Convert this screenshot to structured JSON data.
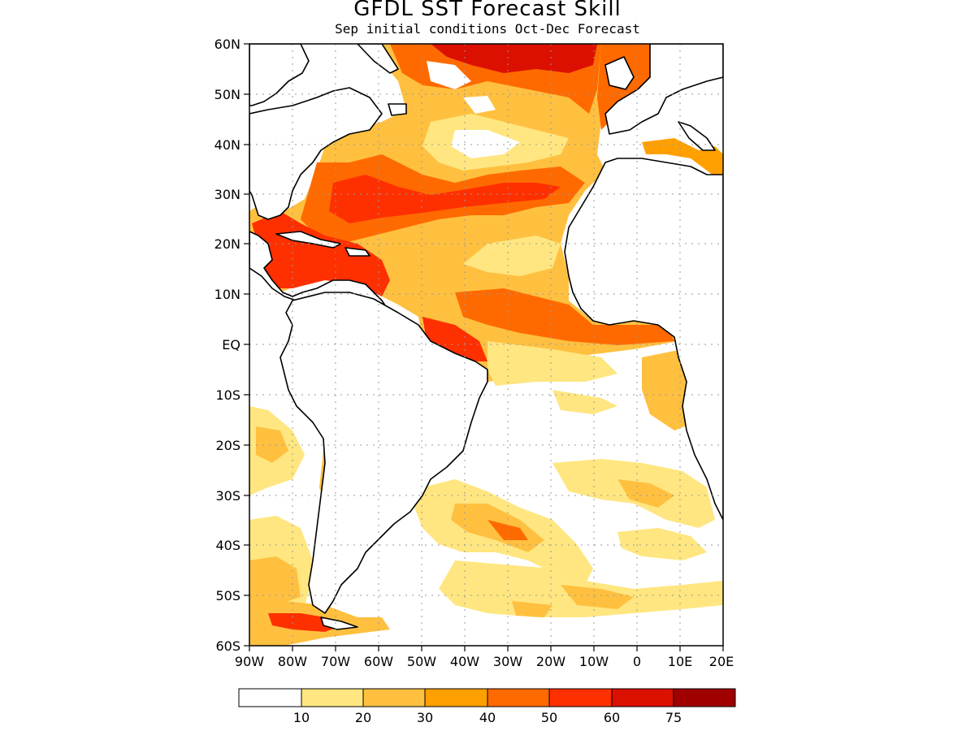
{
  "title": "GFDL SST Forecast Skill",
  "subtitle": "Sep initial conditions  Oct-Dec Forecast",
  "map": {
    "region": "Atlantic Ocean",
    "lat_labels": [
      "60N",
      "50N",
      "40N",
      "30N",
      "20N",
      "10N",
      "EQ",
      "10S",
      "20S",
      "30S",
      "40S",
      "50S",
      "60S"
    ],
    "lon_labels": [
      "90W",
      "80W",
      "70W",
      "60W",
      "50W",
      "40W",
      "30W",
      "20W",
      "10W",
      "0",
      "10E",
      "20E"
    ],
    "lat_range": [
      -60,
      60
    ],
    "lon_range": [
      -90,
      20
    ],
    "grid": "dotted"
  },
  "legend": {
    "labels": [
      "10",
      "20",
      "30",
      "40",
      "50",
      "60",
      "75"
    ],
    "colors": [
      "#ffffff",
      "#ffe680",
      "#ffc040",
      "#ffa000",
      "#ff6a00",
      "#ff3000",
      "#dc1000",
      "#a00000"
    ]
  }
}
